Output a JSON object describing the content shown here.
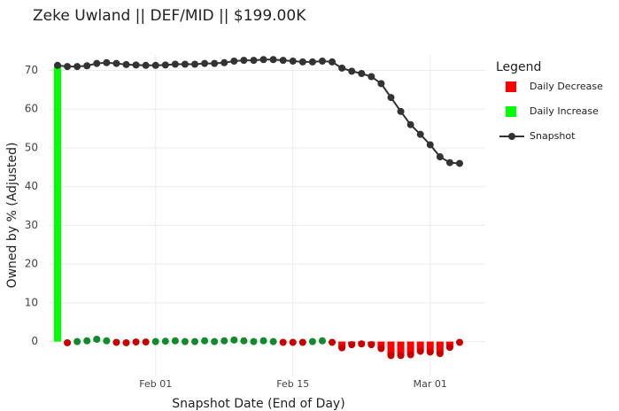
{
  "chart_data": {
    "type": "line",
    "title": "Zeke Uwland || DEF/MID || $199.00K",
    "xlabel": "Snapshot Date (End of Day)",
    "ylabel": "Owned by % (Adjusted)",
    "legend_title": "Legend",
    "categories": [
      "Jan 22",
      "Jan 23",
      "Jan 24",
      "Jan 25",
      "Jan 26",
      "Jan 27",
      "Jan 28",
      "Jan 29",
      "Jan 30",
      "Jan 31",
      "Feb 01",
      "Feb 02",
      "Feb 03",
      "Feb 04",
      "Feb 05",
      "Feb 06",
      "Feb 07",
      "Feb 08",
      "Feb 09",
      "Feb 10",
      "Feb 11",
      "Feb 12",
      "Feb 13",
      "Feb 14",
      "Feb 15",
      "Feb 16",
      "Feb 17",
      "Feb 18",
      "Feb 19",
      "Feb 20",
      "Feb 21",
      "Feb 22",
      "Feb 23",
      "Feb 24",
      "Feb 25",
      "Feb 26",
      "Feb 27",
      "Feb 28",
      "Mar 01",
      "Mar 02",
      "Mar 03",
      "Mar 04"
    ],
    "xticks": [
      "Feb 01",
      "Feb 15",
      "Mar 01"
    ],
    "ylim": [
      -9,
      74
    ],
    "yticks": [
      0,
      10,
      20,
      30,
      40,
      50,
      60,
      70
    ],
    "grid": true,
    "series": [
      {
        "name": "Daily Decrease",
        "kind": "bar",
        "color": "#ff0000",
        "marker_color": "#c80000",
        "values": [
          null,
          -0.3,
          null,
          null,
          null,
          null,
          -0.2,
          -0.3,
          -0.1,
          -0.1,
          null,
          null,
          null,
          null,
          null,
          null,
          null,
          null,
          null,
          null,
          null,
          null,
          null,
          -0.2,
          -0.2,
          -0.2,
          null,
          null,
          -0.2,
          -1.6,
          -0.8,
          -0.6,
          -0.8,
          -1.8,
          -3.6,
          -3.6,
          -3.4,
          -2.5,
          -2.7,
          -3.1,
          -1.5,
          -0.2
        ]
      },
      {
        "name": "Daily Increase",
        "kind": "bar",
        "color": "#00ff00",
        "marker_color": "#108a2a",
        "values": [
          71.3,
          null,
          0,
          0.2,
          0.6,
          0.2,
          null,
          null,
          null,
          null,
          0,
          0.1,
          0.2,
          0,
          0,
          0.2,
          0,
          0.2,
          0.4,
          0.2,
          0,
          0.2,
          0,
          null,
          null,
          null,
          0,
          0.2,
          null,
          null,
          null,
          null,
          null,
          null,
          null,
          null,
          null,
          null,
          null,
          null,
          null,
          null
        ]
      },
      {
        "name": "Snapshot",
        "kind": "line",
        "color": "#333333",
        "values": [
          71.3,
          71.0,
          71.0,
          71.2,
          71.8,
          72.0,
          71.8,
          71.5,
          71.4,
          71.3,
          71.3,
          71.4,
          71.6,
          71.6,
          71.6,
          71.8,
          71.8,
          72.0,
          72.4,
          72.6,
          72.6,
          72.8,
          72.8,
          72.6,
          72.4,
          72.2,
          72.2,
          72.4,
          72.2,
          70.6,
          69.8,
          69.2,
          68.4,
          66.6,
          63.0,
          59.4,
          56.0,
          53.5,
          50.8,
          47.7,
          46.2,
          46.0
        ]
      }
    ]
  }
}
